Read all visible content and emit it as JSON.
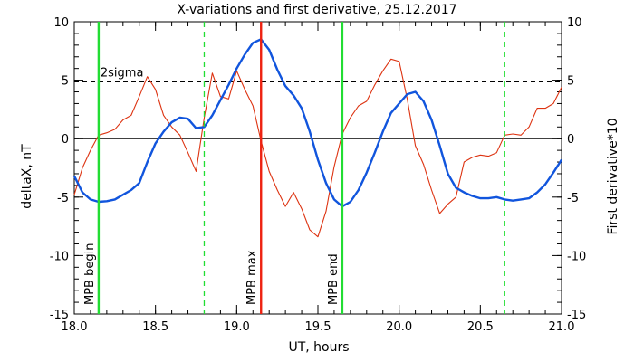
{
  "chart_data": {
    "type": "line",
    "title": "X-variations and first derivative, 25.12.2017",
    "xlabel": "UT, hours",
    "ylabel_left": "deltaX, nT",
    "ylabel_right": "First derivative*10",
    "xlim": [
      18.0,
      21.0
    ],
    "ylim": [
      -15,
      10
    ],
    "xticks": [
      "18.0",
      "18.5",
      "19.0",
      "19.5",
      "20.0",
      "20.5",
      "21.0"
    ],
    "yticks": [
      "10",
      "5",
      "0",
      "-5",
      "-10",
      "-15"
    ],
    "yticks_right": [
      "10",
      "5",
      "0",
      "-5",
      "-10",
      "-15"
    ],
    "colors": {
      "series_x": "#1155dd",
      "series_deriv": "#dd3311",
      "left_axis_label": "#1155dd",
      "right_axis_label": "#dd3311",
      "mpb_boundary": "#22dd33",
      "mpb_max": "#ee2211"
    },
    "threshold": {
      "label": "2sigma",
      "y": 4.85
    },
    "zero_line": {
      "y": 0
    },
    "vlines": [
      {
        "x": 18.15,
        "label": "MPB begin",
        "style": "solid",
        "color": "#22dd33"
      },
      {
        "x": 18.8,
        "label": "",
        "style": "dashed",
        "color": "#22dd33"
      },
      {
        "x": 19.15,
        "label": "MPB max",
        "style": "solid",
        "color": "#ee2211"
      },
      {
        "x": 19.65,
        "label": "MPB end",
        "style": "solid",
        "color": "#22dd33"
      },
      {
        "x": 20.65,
        "label": "",
        "style": "dashed",
        "color": "#22dd33"
      }
    ],
    "series": [
      {
        "name": "deltaX",
        "color": "#1155dd",
        "x": [
          18.0,
          18.05,
          18.1,
          18.15,
          18.2,
          18.25,
          18.3,
          18.35,
          18.4,
          18.45,
          18.5,
          18.55,
          18.6,
          18.65,
          18.7,
          18.75,
          18.8,
          18.85,
          18.9,
          18.95,
          19.0,
          19.05,
          19.1,
          19.15,
          19.2,
          19.25,
          19.3,
          19.35,
          19.4,
          19.45,
          19.5,
          19.55,
          19.6,
          19.65,
          19.7,
          19.75,
          19.8,
          19.85,
          19.9,
          19.95,
          20.0,
          20.05,
          20.1,
          20.15,
          20.2,
          20.25,
          20.3,
          20.35,
          20.4,
          20.45,
          20.5,
          20.55,
          20.6,
          20.65,
          20.7,
          20.75,
          20.8,
          20.85,
          20.9,
          20.95,
          21.0
        ],
        "values": [
          -3.2,
          -4.6,
          -5.2,
          -5.4,
          -5.35,
          -5.2,
          -4.8,
          -4.4,
          -3.8,
          -2.0,
          -0.4,
          0.6,
          1.4,
          1.8,
          1.7,
          0.9,
          1.0,
          2.0,
          3.3,
          4.6,
          6.0,
          7.2,
          8.2,
          8.5,
          7.6,
          5.9,
          4.5,
          3.7,
          2.6,
          0.6,
          -1.8,
          -3.8,
          -5.2,
          -5.8,
          -5.4,
          -4.4,
          -2.9,
          -1.2,
          0.6,
          2.2,
          3.0,
          3.8,
          4.0,
          3.2,
          1.6,
          -0.6,
          -3.0,
          -4.2,
          -4.6,
          -4.9,
          -5.1,
          -5.1,
          -5.0,
          -5.2,
          -5.3,
          -5.2,
          -5.1,
          -4.6,
          -3.9,
          -2.9,
          -1.8
        ]
      },
      {
        "name": "First derivative*10",
        "color": "#dd3311",
        "x": [
          18.0,
          18.05,
          18.1,
          18.15,
          18.2,
          18.25,
          18.3,
          18.35,
          18.4,
          18.45,
          18.5,
          18.55,
          18.6,
          18.65,
          18.7,
          18.75,
          18.8,
          18.85,
          18.9,
          18.95,
          19.0,
          19.05,
          19.1,
          19.15,
          19.2,
          19.25,
          19.3,
          19.35,
          19.4,
          19.45,
          19.5,
          19.55,
          19.6,
          19.65,
          19.7,
          19.75,
          19.8,
          19.85,
          19.9,
          19.95,
          20.0,
          20.05,
          20.1,
          20.15,
          20.2,
          20.25,
          20.3,
          20.35,
          20.4,
          20.45,
          20.5,
          20.55,
          20.6,
          20.65,
          20.7,
          20.75,
          20.8,
          20.85,
          20.9,
          20.95,
          21.0
        ],
        "values": [
          -4.8,
          -2.5,
          -1.0,
          0.3,
          0.5,
          0.8,
          1.6,
          2.0,
          3.6,
          5.3,
          4.2,
          2.0,
          1.0,
          0.3,
          -1.2,
          -2.8,
          1.8,
          5.6,
          3.6,
          3.4,
          5.8,
          4.2,
          2.8,
          -0.2,
          -2.8,
          -4.4,
          -5.8,
          -4.6,
          -6.0,
          -7.8,
          -8.4,
          -6.2,
          -2.4,
          0.4,
          1.8,
          2.8,
          3.2,
          4.6,
          5.8,
          6.8,
          6.6,
          3.4,
          -0.6,
          -2.2,
          -4.4,
          -6.4,
          -5.6,
          -5.0,
          -2.0,
          -1.6,
          -1.4,
          -1.5,
          -1.2,
          0.3,
          0.4,
          0.3,
          1.0,
          2.6,
          2.6,
          3.0,
          4.4
        ]
      }
    ]
  }
}
